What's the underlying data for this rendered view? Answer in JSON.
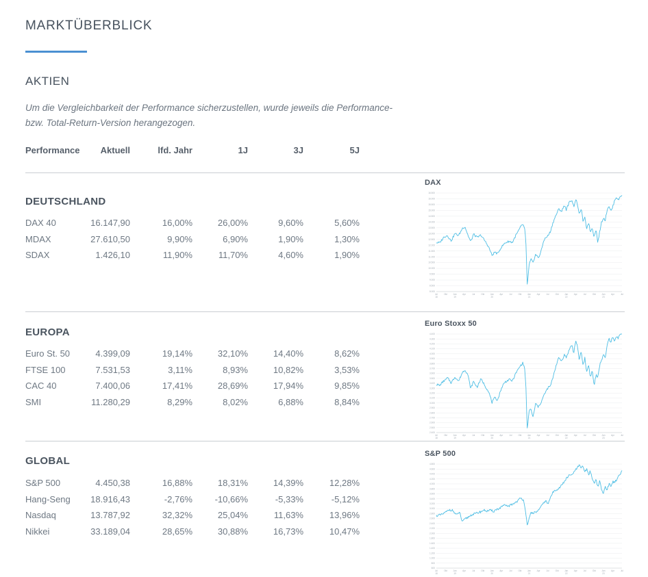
{
  "page": {
    "title": "MARKTÜBERBLICK",
    "section_title": "AKTIEN",
    "note_line1": "Um die Vergleichbarkeit der Performance sicherzustellen, wurde jeweils die Performance-",
    "note_line2": "bzw. Total-Return-Version herangezogen."
  },
  "colors": {
    "accent_blue": "#4a90d2",
    "heading_text": "#47525e",
    "body_text_gray": "#6e7883",
    "divider_gray": "#c9cdd2",
    "chart_line_blue": "#4cbde4",
    "chart_grid_gray": "#e9ebee",
    "chart_axis_label_gray": "#a6aeb6"
  },
  "table": {
    "headers": [
      "Performance",
      "Aktuell",
      "lfd. Jahr",
      "1J",
      "3J",
      "5J"
    ],
    "groups": [
      {
        "name": "DEUTSCHLAND",
        "rows": [
          [
            "DAX 40",
            "16.147,90",
            "16,00%",
            "26,00%",
            "9,60%",
            "5,60%"
          ],
          [
            "MDAX",
            "27.610,50",
            "9,90%",
            "6,90%",
            "1,90%",
            "1,30%"
          ],
          [
            "SDAX",
            "1.426,10",
            "11,90%",
            "11,70%",
            "4,60%",
            "1,90%"
          ]
        ]
      },
      {
        "name": "EUROPA",
        "rows": [
          [
            "Euro St. 50",
            "4.399,09",
            "19,14%",
            "32,10%",
            "14,40%",
            "8,62%"
          ],
          [
            "FTSE 100",
            "7.531,53",
            "3,11%",
            "8,93%",
            "10,82%",
            "3,53%"
          ],
          [
            "CAC 40",
            "7.400,06",
            "17,41%",
            "28,69%",
            "17,94%",
            "9,85%"
          ],
          [
            "SMI",
            "11.280,29",
            "8,29%",
            "8,02%",
            "6,88%",
            "8,84%"
          ]
        ]
      },
      {
        "name": "GLOBAL",
        "rows": [
          [
            "S&P 500",
            "4.450,38",
            "16,88%",
            "18,31%",
            "14,39%",
            "12,28%"
          ],
          [
            "Hang-Seng",
            "18.916,43",
            "-2,76%",
            "-10,66%",
            "-5,33%",
            "-5,12%"
          ],
          [
            "Nasdaq",
            "13.787,92",
            "32,32%",
            "25,04%",
            "11,63%",
            "13,96%"
          ],
          [
            "Nikkei",
            "33.189,04",
            "28,65%",
            "30,88%",
            "16,73%",
            "10,47%"
          ]
        ]
      }
    ]
  },
  "chart_data": [
    {
      "type": "line",
      "title": "DAX",
      "xlabel": "",
      "ylabel": "",
      "x_tick_labels": [
        "Jul 18",
        "Okt",
        "Jan 19",
        "Apr",
        "Jul",
        "Okt",
        "Jan 20",
        "Apr",
        "Jul",
        "Okt",
        "Jan 21",
        "Apr",
        "Jul",
        "Okt",
        "Jan 22",
        "Apr",
        "Jul",
        "Okt",
        "Jan 23",
        "Apr",
        "Jul"
      ],
      "y_axis": {
        "min": 8000,
        "max": 16500,
        "grid_step": 500
      },
      "grid": true,
      "legend": "none",
      "series": [
        {
          "name": "DAX",
          "anchor_points": [
            [
              0,
              12300
            ],
            [
              0.02,
              12150
            ],
            [
              0.04,
              12650
            ],
            [
              0.06,
              12900
            ],
            [
              0.08,
              12500
            ],
            [
              0.1,
              13100
            ],
            [
              0.12,
              12900
            ],
            [
              0.14,
              13350
            ],
            [
              0.155,
              13500
            ],
            [
              0.17,
              12900
            ],
            [
              0.185,
              12400
            ],
            [
              0.2,
              13050
            ],
            [
              0.22,
              12650
            ],
            [
              0.24,
              12850
            ],
            [
              0.26,
              12350
            ],
            [
              0.28,
              11850
            ],
            [
              0.3,
              11150
            ],
            [
              0.315,
              11550
            ],
            [
              0.33,
              11300
            ],
            [
              0.35,
              11850
            ],
            [
              0.37,
              12250
            ],
            [
              0.39,
              12400
            ],
            [
              0.41,
              12250
            ],
            [
              0.43,
              12950
            ],
            [
              0.45,
              13400
            ],
            [
              0.465,
              13700
            ],
            [
              0.475,
              13400
            ],
            [
              0.482,
              12300
            ],
            [
              0.49,
              8450
            ],
            [
              0.5,
              10300
            ],
            [
              0.51,
              10800
            ],
            [
              0.52,
              10400
            ],
            [
              0.535,
              11100
            ],
            [
              0.55,
              10900
            ],
            [
              0.565,
              11500
            ],
            [
              0.58,
              12400
            ],
            [
              0.6,
              12800
            ],
            [
              0.615,
              13150
            ],
            [
              0.63,
              13900
            ],
            [
              0.645,
              14600
            ],
            [
              0.66,
              15150
            ],
            [
              0.675,
              14900
            ],
            [
              0.69,
              15450
            ],
            [
              0.7,
              15050
            ],
            [
              0.715,
              15700
            ],
            [
              0.73,
              16000
            ],
            [
              0.74,
              15350
            ],
            [
              0.75,
              15950
            ],
            [
              0.76,
              15550
            ],
            [
              0.77,
              14450
            ],
            [
              0.78,
              15150
            ],
            [
              0.79,
              14150
            ],
            [
              0.8,
              14450
            ],
            [
              0.81,
              13450
            ],
            [
              0.82,
              13900
            ],
            [
              0.83,
              13050
            ],
            [
              0.84,
              13500
            ],
            [
              0.85,
              12650
            ],
            [
              0.86,
              13350
            ],
            [
              0.87,
              12150
            ],
            [
              0.88,
              13150
            ],
            [
              0.89,
              14050
            ],
            [
              0.9,
              14400
            ],
            [
              0.91,
              14150
            ],
            [
              0.92,
              15050
            ],
            [
              0.93,
              15450
            ],
            [
              0.94,
              15000
            ],
            [
              0.95,
              15300
            ],
            [
              0.96,
              15800
            ],
            [
              0.97,
              16100
            ],
            [
              0.98,
              15850
            ],
            [
              0.99,
              16200
            ],
            [
              1,
              16350
            ]
          ]
        }
      ]
    },
    {
      "type": "line",
      "title": "Euro Stoxx 50",
      "xlabel": "",
      "ylabel": "",
      "x_tick_labels": [
        "Jul 18",
        "Okt",
        "Jan 19",
        "Apr",
        "Jul",
        "Okt",
        "Jan 20",
        "Apr",
        "Jul",
        "Okt",
        "Jan 21",
        "Apr",
        "Jul",
        "Okt",
        "Jan 22",
        "Apr",
        "Jul",
        "Okt",
        "Jan 23",
        "Apr",
        "Jul"
      ],
      "y_axis": {
        "min": 2400,
        "max": 4400,
        "grid_step": 100
      },
      "grid": true,
      "legend": "none",
      "series": [
        {
          "name": "Euro Stoxx 50",
          "anchor_points": [
            [
              0,
              3390
            ],
            [
              0.02,
              3330
            ],
            [
              0.04,
              3450
            ],
            [
              0.06,
              3530
            ],
            [
              0.08,
              3430
            ],
            [
              0.1,
              3560
            ],
            [
              0.12,
              3470
            ],
            [
              0.14,
              3620
            ],
            [
              0.155,
              3660
            ],
            [
              0.17,
              3550
            ],
            [
              0.185,
              3280
            ],
            [
              0.2,
              3440
            ],
            [
              0.22,
              3350
            ],
            [
              0.24,
              3480
            ],
            [
              0.26,
              3380
            ],
            [
              0.28,
              3250
            ],
            [
              0.3,
              3020
            ],
            [
              0.315,
              3130
            ],
            [
              0.33,
              3080
            ],
            [
              0.35,
              3300
            ],
            [
              0.37,
              3420
            ],
            [
              0.39,
              3470
            ],
            [
              0.41,
              3420
            ],
            [
              0.43,
              3600
            ],
            [
              0.45,
              3720
            ],
            [
              0.465,
              3790
            ],
            [
              0.475,
              3700
            ],
            [
              0.482,
              3350
            ],
            [
              0.49,
              2420
            ],
            [
              0.5,
              2850
            ],
            [
              0.51,
              2900
            ],
            [
              0.52,
              2700
            ],
            [
              0.535,
              2980
            ],
            [
              0.55,
              2890
            ],
            [
              0.565,
              3000
            ],
            [
              0.58,
              3150
            ],
            [
              0.6,
              3280
            ],
            [
              0.615,
              3350
            ],
            [
              0.63,
              3580
            ],
            [
              0.645,
              3750
            ],
            [
              0.66,
              3890
            ],
            [
              0.675,
              3830
            ],
            [
              0.69,
              3960
            ],
            [
              0.7,
              3900
            ],
            [
              0.715,
              4060
            ],
            [
              0.73,
              4180
            ],
            [
              0.74,
              4000
            ],
            [
              0.75,
              4280
            ],
            [
              0.76,
              4150
            ],
            [
              0.77,
              3870
            ],
            [
              0.78,
              4060
            ],
            [
              0.79,
              3780
            ],
            [
              0.8,
              3920
            ],
            [
              0.81,
              3620
            ],
            [
              0.82,
              3760
            ],
            [
              0.83,
              3520
            ],
            [
              0.84,
              3680
            ],
            [
              0.85,
              3370
            ],
            [
              0.86,
              3580
            ],
            [
              0.87,
              3500
            ],
            [
              0.88,
              3780
            ],
            [
              0.89,
              3900
            ],
            [
              0.9,
              4010
            ],
            [
              0.91,
              3890
            ],
            [
              0.92,
              4160
            ],
            [
              0.93,
              4290
            ],
            [
              0.94,
              4230
            ],
            [
              0.95,
              4340
            ],
            [
              0.96,
              4270
            ],
            [
              0.97,
              4390
            ],
            [
              0.98,
              4310
            ],
            [
              0.99,
              4380
            ],
            [
              1,
              4400
            ]
          ]
        }
      ]
    },
    {
      "type": "line",
      "title": "S&P 500",
      "xlabel": "",
      "ylabel": "",
      "x_tick_labels": [
        "Jul 18",
        "Okt",
        "Jan 19",
        "Apr",
        "Jul",
        "Okt",
        "Jan 20",
        "Apr",
        "Jul",
        "Okt",
        "Jan 21",
        "Apr",
        "Jul",
        "Okt",
        "Jan 22",
        "Apr",
        "Jul",
        "Okt",
        "Jan 23",
        "Apr",
        "Jul"
      ],
      "y_axis": {
        "min": 600,
        "max": 4800,
        "grid_step": 200
      },
      "grid": true,
      "legend": "none",
      "series": [
        {
          "name": "S&P 500",
          "anchor_points": [
            [
              0,
              2720
            ],
            [
              0.03,
              2790
            ],
            [
              0.06,
              2870
            ],
            [
              0.09,
              2930
            ],
            [
              0.11,
              2770
            ],
            [
              0.125,
              2900
            ],
            [
              0.14,
              2480
            ],
            [
              0.155,
              2630
            ],
            [
              0.17,
              2710
            ],
            [
              0.2,
              2800
            ],
            [
              0.23,
              2900
            ],
            [
              0.25,
              2945
            ],
            [
              0.27,
              2880
            ],
            [
              0.29,
              2990
            ],
            [
              0.31,
              2890
            ],
            [
              0.33,
              3020
            ],
            [
              0.36,
              3110
            ],
            [
              0.39,
              3140
            ],
            [
              0.42,
              3280
            ],
            [
              0.45,
              3390
            ],
            [
              0.47,
              3330
            ],
            [
              0.48,
              2950
            ],
            [
              0.49,
              2260
            ],
            [
              0.5,
              2550
            ],
            [
              0.51,
              2800
            ],
            [
              0.53,
              2880
            ],
            [
              0.55,
              2990
            ],
            [
              0.57,
              3150
            ],
            [
              0.59,
              3330
            ],
            [
              0.6,
              3230
            ],
            [
              0.62,
              3530
            ],
            [
              0.64,
              3700
            ],
            [
              0.66,
              3780
            ],
            [
              0.68,
              3950
            ],
            [
              0.7,
              4190
            ],
            [
              0.715,
              4360
            ],
            [
              0.73,
              4420
            ],
            [
              0.745,
              4520
            ],
            [
              0.76,
              4680
            ],
            [
              0.77,
              4790
            ],
            [
              0.78,
              4640
            ],
            [
              0.79,
              4760
            ],
            [
              0.8,
              4480
            ],
            [
              0.81,
              4580
            ],
            [
              0.82,
              4320
            ],
            [
              0.83,
              4460
            ],
            [
              0.84,
              4120
            ],
            [
              0.85,
              3990
            ],
            [
              0.86,
              4160
            ],
            [
              0.87,
              3880
            ],
            [
              0.88,
              4110
            ],
            [
              0.89,
              3760
            ],
            [
              0.9,
              3620
            ],
            [
              0.91,
              3910
            ],
            [
              0.92,
              3790
            ],
            [
              0.93,
              4020
            ],
            [
              0.94,
              3940
            ],
            [
              0.95,
              4120
            ],
            [
              0.96,
              4060
            ],
            [
              0.97,
              4160
            ],
            [
              0.98,
              4260
            ],
            [
              0.99,
              4340
            ],
            [
              1,
              4460
            ]
          ]
        }
      ]
    }
  ]
}
